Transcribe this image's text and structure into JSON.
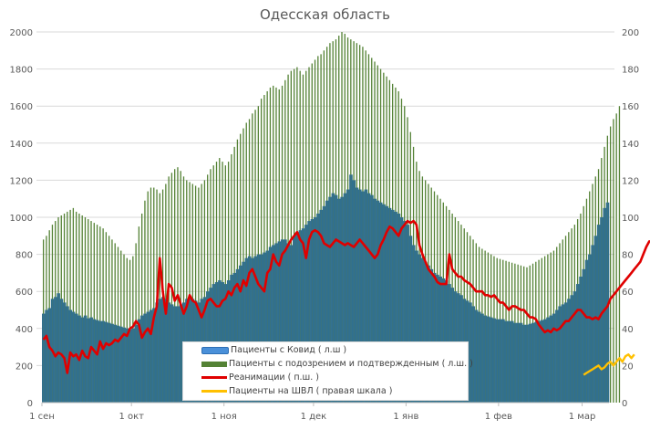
{
  "chart_data": {
    "type": "bar+line",
    "title": "Одесская область",
    "xlabel": "",
    "ylabel_left": "",
    "ylabel_right": "",
    "ylim_left": [
      0,
      2000
    ],
    "ylim_right": [
      0,
      200
    ],
    "yticks_left": [
      "0",
      "200",
      "400",
      "600",
      "800",
      "1000",
      "1200",
      "1400",
      "1600",
      "1800",
      "2000"
    ],
    "yticks_right": [
      "0",
      "20",
      "40",
      "60",
      "80",
      "100",
      "120",
      "140",
      "160",
      "180",
      "200"
    ],
    "xticks": [
      {
        "label": "1 сен",
        "day": 0
      },
      {
        "label": "1 окт",
        "day": 30
      },
      {
        "label": "1 ноя",
        "day": 61
      },
      {
        "label": "1 дек",
        "day": 91
      },
      {
        "label": "1 янв",
        "day": 122
      },
      {
        "label": "1 фев",
        "day": 153
      },
      {
        "label": "1 мар",
        "day": 181
      }
    ],
    "grid": true,
    "legend_position": "bottom-center-inside",
    "series": [
      {
        "name": "Пациенты с Ковид ( л.ш )",
        "axis": "left",
        "kind": "bar",
        "color": "#31708f",
        "start_day": 0,
        "values": [
          480,
          500,
          510,
          560,
          570,
          590,
          560,
          540,
          520,
          500,
          490,
          480,
          470,
          460,
          470,
          455,
          460,
          450,
          445,
          440,
          440,
          435,
          430,
          425,
          420,
          415,
          410,
          405,
          400,
          395,
          400,
          420,
          450,
          470,
          480,
          490,
          500,
          510,
          540,
          560,
          570,
          560,
          540,
          530,
          520,
          520,
          530,
          540,
          560,
          570,
          560,
          550,
          540,
          560,
          570,
          600,
          620,
          640,
          650,
          660,
          650,
          640,
          660,
          690,
          700,
          720,
          740,
          760,
          780,
          790,
          780,
          790,
          800,
          800,
          810,
          820,
          840,
          850,
          860,
          870,
          880,
          880,
          860,
          850,
          900,
          920,
          930,
          940,
          960,
          980,
          990,
          1000,
          1020,
          1040,
          1060,
          1090,
          1110,
          1130,
          1120,
          1100,
          1110,
          1130,
          1150,
          1230,
          1200,
          1160,
          1150,
          1140,
          1150,
          1130,
          1120,
          1100,
          1090,
          1080,
          1070,
          1060,
          1050,
          1040,
          1030,
          1020,
          1000,
          980,
          960,
          900,
          850,
          820,
          800,
          780,
          760,
          740,
          720,
          700,
          690,
          680,
          670,
          660,
          640,
          620,
          600,
          590,
          580,
          560,
          550,
          540,
          520,
          500,
          490,
          480,
          470,
          465,
          460,
          455,
          450,
          450,
          450,
          440,
          440,
          440,
          430,
          430,
          430,
          420,
          420,
          425,
          430,
          435,
          440,
          445,
          450,
          460,
          470,
          480,
          500,
          520,
          530,
          540,
          560,
          580,
          600,
          640,
          680,
          720,
          770,
          800,
          850,
          900,
          960,
          1000,
          1050,
          1080
        ]
      },
      {
        "name": "Пациенты с подозрением и подтвержденным ( л.ш. )",
        "axis": "left",
        "kind": "bar",
        "color": "#548235",
        "start_day": 0,
        "values": [
          880,
          900,
          930,
          960,
          980,
          1000,
          1010,
          1020,
          1030,
          1040,
          1050,
          1030,
          1020,
          1010,
          1000,
          990,
          980,
          970,
          960,
          950,
          940,
          920,
          900,
          880,
          860,
          840,
          820,
          800,
          780,
          770,
          790,
          860,
          950,
          1020,
          1090,
          1140,
          1160,
          1160,
          1150,
          1130,
          1150,
          1180,
          1220,
          1240,
          1260,
          1270,
          1250,
          1220,
          1200,
          1190,
          1180,
          1170,
          1160,
          1180,
          1200,
          1230,
          1260,
          1280,
          1300,
          1320,
          1300,
          1280,
          1300,
          1340,
          1380,
          1420,
          1450,
          1480,
          1510,
          1530,
          1560,
          1580,
          1600,
          1640,
          1660,
          1680,
          1700,
          1710,
          1700,
          1690,
          1710,
          1740,
          1770,
          1790,
          1800,
          1810,
          1790,
          1770,
          1790,
          1810,
          1830,
          1850,
          1870,
          1880,
          1900,
          1920,
          1940,
          1950,
          1960,
          1980,
          2000,
          1990,
          1970,
          1960,
          1950,
          1940,
          1930,
          1920,
          1900,
          1880,
          1860,
          1840,
          1820,
          1800,
          1780,
          1760,
          1740,
          1720,
          1700,
          1680,
          1640,
          1600,
          1540,
          1460,
          1380,
          1300,
          1250,
          1220,
          1200,
          1180,
          1160,
          1140,
          1120,
          1100,
          1080,
          1060,
          1040,
          1020,
          1000,
          980,
          960,
          940,
          920,
          900,
          880,
          860,
          840,
          830,
          820,
          810,
          800,
          790,
          780,
          775,
          770,
          765,
          760,
          755,
          750,
          745,
          740,
          735,
          730,
          740,
          750,
          760,
          770,
          780,
          790,
          800,
          810,
          820,
          840,
          860,
          880,
          900,
          920,
          940,
          960,
          990,
          1020,
          1060,
          1100,
          1140,
          1180,
          1220,
          1260,
          1320,
          1380,
          1440,
          1490,
          1530,
          1560,
          1600
        ]
      },
      {
        "name": "Реанимации ( п.ш. )",
        "axis": "right",
        "kind": "line",
        "color": "#e00000",
        "start_day": 0,
        "values": [
          34,
          36,
          30,
          28,
          25,
          27,
          26,
          24,
          16,
          27,
          25,
          26,
          23,
          28,
          25,
          24,
          30,
          28,
          26,
          33,
          29,
          32,
          31,
          32,
          34,
          33,
          35,
          37,
          36,
          40,
          41,
          44,
          42,
          35,
          38,
          40,
          37,
          46,
          52,
          78,
          60,
          48,
          64,
          62,
          55,
          58,
          53,
          48,
          52,
          58,
          55,
          54,
          50,
          46,
          50,
          55,
          56,
          54,
          52,
          52,
          55,
          56,
          60,
          58,
          62,
          64,
          60,
          66,
          63,
          70,
          72,
          68,
          64,
          62,
          60,
          70,
          72,
          80,
          76,
          74,
          80,
          82,
          85,
          88,
          90,
          92,
          88,
          86,
          78,
          88,
          92,
          93,
          92,
          90,
          86,
          85,
          84,
          86,
          88,
          87,
          86,
          85,
          86,
          85,
          84,
          86,
          88,
          86,
          84,
          82,
          80,
          78,
          80,
          85,
          88,
          92,
          95,
          94,
          92,
          90,
          94,
          96,
          98,
          97,
          98,
          96,
          85,
          80,
          76,
          72,
          70,
          68,
          65,
          64,
          64,
          64,
          80,
          72,
          70,
          68,
          68,
          66,
          65,
          64,
          62,
          60,
          60,
          60,
          58,
          58,
          57,
          58,
          56,
          54,
          54,
          52,
          50,
          52,
          52,
          51,
          50,
          50,
          48,
          46,
          46,
          45,
          42,
          40,
          38,
          39,
          38,
          40,
          39,
          40,
          42,
          44,
          44,
          46,
          48,
          50,
          50,
          48,
          46,
          46,
          45,
          46,
          45,
          48,
          50,
          52,
          56,
          58,
          60,
          62,
          64,
          66,
          68,
          70,
          72,
          74,
          76,
          80,
          84,
          87,
          87
        ]
      },
      {
        "name": "Пациенты на ШВЛ ( правая шкала )",
        "axis": "right",
        "kind": "line",
        "color": "#ffc000",
        "start_day": 181,
        "values": [
          15,
          16,
          17,
          18,
          19,
          20,
          18,
          19,
          21,
          22,
          20,
          22,
          24,
          22,
          25,
          26,
          24,
          26
        ]
      }
    ]
  }
}
